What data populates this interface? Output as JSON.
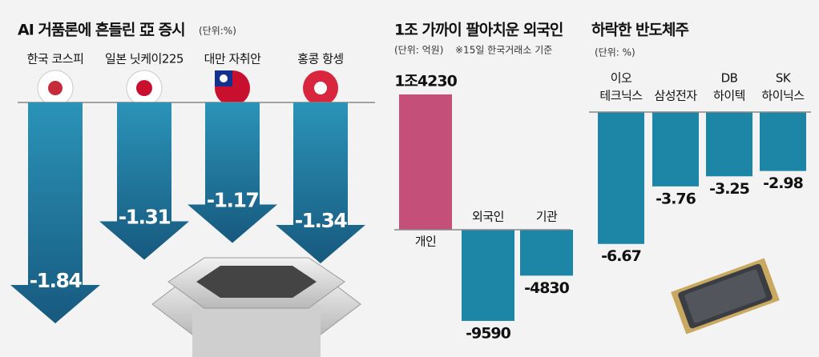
{
  "chart_data": [
    {
      "type": "arrow",
      "title": "AI 거품론에 흔들린 亞 증시",
      "unit": "(단위:%)",
      "categories": [
        "한국 코스피",
        "일본 닛케이225",
        "대만 자취안",
        "홍콩 항셍"
      ],
      "values": [
        -1.84,
        -1.31,
        -1.17,
        -1.34
      ],
      "color": "#1f7fa3"
    },
    {
      "type": "bar",
      "title": "1조 가까이 팔아치운 외국인",
      "unit": "(단위: 억원)",
      "note": "※15일 한국거래소 기준",
      "categories": [
        "개인",
        "외국인",
        "기관"
      ],
      "values": [
        14230,
        -9590,
        -4830
      ],
      "value_labels": [
        "1조4230",
        "-9590",
        "-4830"
      ],
      "colors": [
        "#c44f78",
        "#1d86a6",
        "#1d86a6"
      ]
    },
    {
      "type": "bar",
      "title": "하락한 반도체주",
      "unit": "(단위: %)",
      "categories": [
        [
          "이오",
          "테크닉스"
        ],
        [
          "삼성전자"
        ],
        [
          "DB",
          "하이텍"
        ],
        [
          "SK",
          "하이닉스"
        ]
      ],
      "values": [
        -6.67,
        -3.76,
        -3.25,
        -2.98
      ],
      "color": "#1d86a6"
    }
  ]
}
